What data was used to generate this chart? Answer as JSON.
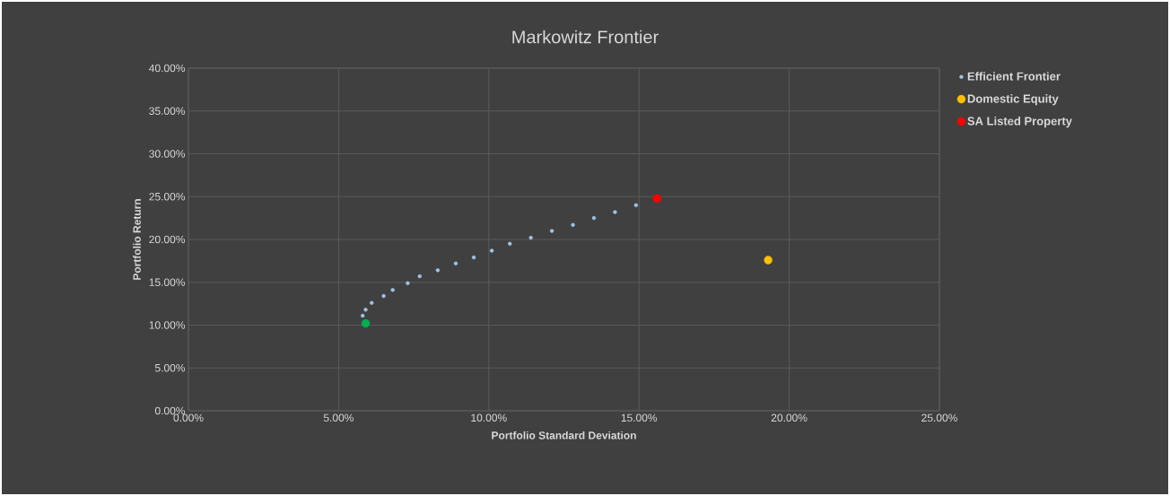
{
  "chart_data": {
    "type": "scatter",
    "title": "Markowitz Frontier",
    "xlabel": "Portfolio Standard Deviation",
    "ylabel": "Portfolio Return",
    "xlim": [
      0,
      25
    ],
    "ylim": [
      0,
      40
    ],
    "xticks": [
      {
        "value": 0,
        "label": "0.00%"
      },
      {
        "value": 5,
        "label": "5.00%"
      },
      {
        "value": 10,
        "label": "10.00%"
      },
      {
        "value": 15,
        "label": "15.00%"
      },
      {
        "value": 20,
        "label": "20.00%"
      },
      {
        "value": 25,
        "label": "25.00%"
      }
    ],
    "yticks": [
      {
        "value": 0,
        "label": "0.00%"
      },
      {
        "value": 5,
        "label": "5.00%"
      },
      {
        "value": 10,
        "label": "10.00%"
      },
      {
        "value": 15,
        "label": "15.00%"
      },
      {
        "value": 20,
        "label": "20.00%"
      },
      {
        "value": 25,
        "label": "25.00%"
      },
      {
        "value": 30,
        "label": "30.00%"
      },
      {
        "value": 35,
        "label": "35.00%"
      },
      {
        "value": 40,
        "label": "40.00%"
      }
    ],
    "grid": true,
    "legend": "right",
    "marker": "circle",
    "series": [
      {
        "name": "Efficient Frontier",
        "color": "#9dc3e6",
        "x": [
          5.8,
          5.9,
          6.1,
          6.5,
          6.8,
          7.3,
          7.7,
          8.3,
          8.9,
          9.5,
          10.1,
          10.7,
          11.4,
          12.1,
          12.8,
          13.5,
          14.2,
          14.9
        ],
        "values": [
          11.1,
          11.8,
          12.6,
          13.4,
          14.1,
          14.9,
          15.7,
          16.4,
          17.2,
          17.9,
          18.7,
          19.5,
          20.2,
          21.0,
          21.7,
          22.5,
          23.2,
          24.0
        ]
      },
      {
        "name": "Domestic Equity",
        "color": "#ffc000",
        "x": [
          19.3
        ],
        "values": [
          17.6
        ]
      },
      {
        "name": "SA Listed Property",
        "color": "#ff0000",
        "x": [
          15.6
        ],
        "values": [
          24.8
        ]
      },
      {
        "color": "#00b050",
        "x": [
          5.9
        ],
        "values": [
          10.2
        ]
      }
    ]
  }
}
